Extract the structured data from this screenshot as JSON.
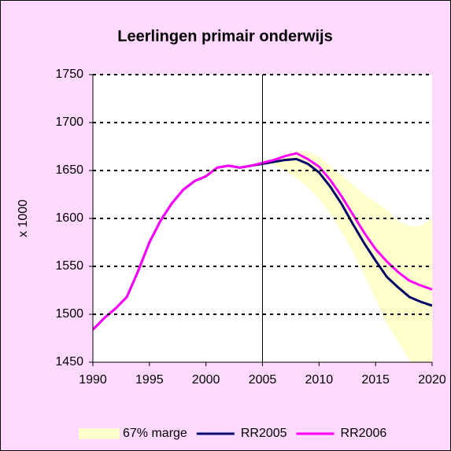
{
  "chart_data": {
    "type": "line",
    "title": "Leerlingen primair onderwijs",
    "y_label": "x 1000",
    "x": [
      1990,
      1991,
      1992,
      1993,
      1994,
      1995,
      1996,
      1997,
      1998,
      1999,
      2000,
      2001,
      2002,
      2003,
      2004,
      2005,
      2006,
      2007,
      2008,
      2009,
      2010,
      2011,
      2012,
      2013,
      2014,
      2015,
      2016,
      2017,
      2018,
      2019,
      2020
    ],
    "series": [
      {
        "name": "67% marge",
        "type": "band",
        "color": "#ffffcc",
        "lower": [
          null,
          null,
          null,
          null,
          null,
          null,
          null,
          null,
          null,
          null,
          null,
          null,
          null,
          null,
          null,
          1657,
          1656,
          1650,
          1642,
          1633,
          1620,
          1605,
          1586,
          1565,
          1541,
          1516,
          1490,
          1472,
          1452,
          1440,
          1430
        ],
        "upper": [
          null,
          null,
          null,
          null,
          null,
          null,
          null,
          null,
          null,
          null,
          null,
          null,
          null,
          null,
          null,
          1657,
          1661,
          1667,
          1670,
          1670,
          1664,
          1655,
          1645,
          1635,
          1625,
          1617,
          1609,
          1597,
          1592,
          1592,
          1600
        ]
      },
      {
        "name": "RR2005",
        "color": "#000066",
        "values": [
          1484,
          1496,
          1506,
          1518,
          1545,
          1575,
          1598,
          1616,
          1630,
          1639,
          1644,
          1653,
          1655,
          1653,
          1655,
          1657,
          1659,
          1661,
          1662,
          1657,
          1648,
          1633,
          1615,
          1594,
          1574,
          1556,
          1539,
          1528,
          1518,
          1513,
          1509
        ]
      },
      {
        "name": "RR2006",
        "color": "#ff00ff",
        "values": [
          1484,
          1496,
          1506,
          1518,
          1545,
          1575,
          1598,
          1616,
          1630,
          1639,
          1644,
          1653,
          1655,
          1653,
          1655,
          1658,
          1661,
          1665,
          1668,
          1662,
          1654,
          1640,
          1623,
          1604,
          1585,
          1568,
          1555,
          1544,
          1535,
          1530,
          1526
        ]
      }
    ],
    "xlim": [
      1990,
      2020
    ],
    "xticks": [
      1990,
      1995,
      2000,
      2005,
      2010,
      2015,
      2020
    ],
    "ylim": [
      1450,
      1750
    ],
    "yticks": [
      1450,
      1500,
      1550,
      1600,
      1650,
      1700,
      1750
    ],
    "grid": true,
    "vertical_line_x": 2005,
    "legend": "bottom"
  }
}
